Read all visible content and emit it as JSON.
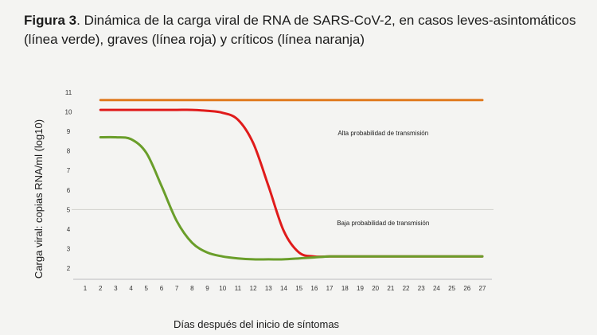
{
  "caption": {
    "label": "Figura 3",
    "text": ". Dinámica de la carga viral de RNA de SARS-CoV-2, en casos leves-asintomáticos (línea verde), graves (línea roja) y críticos (línea naranja)"
  },
  "chart_data": {
    "type": "line",
    "title": "",
    "xlabel": "Días después del inicio de síntomas",
    "ylabel": "Carga viral: copias RNA/ml (log10)",
    "x": [
      1,
      2,
      3,
      4,
      5,
      6,
      7,
      8,
      9,
      10,
      11,
      12,
      13,
      14,
      15,
      16,
      17,
      18,
      19,
      20,
      21,
      22,
      23,
      24,
      25,
      26,
      27
    ],
    "x_tick_labels": [
      "1",
      "2",
      "3",
      "4",
      "5",
      "6",
      "7",
      "8",
      "9",
      "10",
      "11",
      "12",
      "13",
      "14",
      "15",
      "16",
      "17",
      "18",
      "19",
      "20",
      "21",
      "22",
      "23",
      "24",
      "25",
      "26",
      "27"
    ],
    "y_tick_labels": [
      "2",
      "3",
      "4",
      "5",
      "6",
      "7",
      "8",
      "9",
      "10",
      "11"
    ],
    "xlim": [
      1,
      27
    ],
    "ylim": [
      2,
      11
    ],
    "grid": false,
    "reference_line": {
      "y": 5
    },
    "annotations": [
      {
        "text": "Alta probabilidad de transmisión",
        "x": 20.5,
        "y": 8.8
      },
      {
        "text": "Baja probabilidad de transmisión",
        "x": 20.5,
        "y": 4.2
      }
    ],
    "series": [
      {
        "color": "#e07a1f",
        "x": [
          2,
          27
        ],
        "values": [
          10.6,
          10.6
        ]
      },
      {
        "color": "#e01b1b",
        "x": [
          2,
          3,
          4,
          5,
          6,
          7,
          8,
          9,
          10,
          11,
          12,
          13,
          14,
          15,
          16,
          17,
          18,
          19,
          20,
          21,
          22,
          23,
          24,
          25,
          26,
          27
        ],
        "values": [
          10.1,
          10.1,
          10.1,
          10.1,
          10.1,
          10.1,
          10.1,
          10.05,
          9.95,
          9.6,
          8.4,
          6.2,
          3.9,
          2.8,
          2.6,
          2.6,
          2.6,
          2.6,
          2.6,
          2.6,
          2.6,
          2.6,
          2.6,
          2.6,
          2.6,
          2.6
        ]
      },
      {
        "color": "#6a9e2a",
        "x": [
          2,
          3,
          4,
          5,
          6,
          7,
          8,
          9,
          10,
          11,
          12,
          13,
          14,
          15,
          16,
          17,
          18,
          19,
          20,
          21,
          22,
          23,
          24,
          25,
          26,
          27
        ],
        "values": [
          8.7,
          8.7,
          8.6,
          7.9,
          6.2,
          4.4,
          3.3,
          2.8,
          2.6,
          2.5,
          2.45,
          2.45,
          2.45,
          2.5,
          2.55,
          2.6,
          2.6,
          2.6,
          2.6,
          2.6,
          2.6,
          2.6,
          2.6,
          2.6,
          2.6,
          2.6
        ]
      }
    ],
    "colors": {
      "reference_line": "#cfcfcc",
      "axis": "#bdbdbd"
    }
  }
}
